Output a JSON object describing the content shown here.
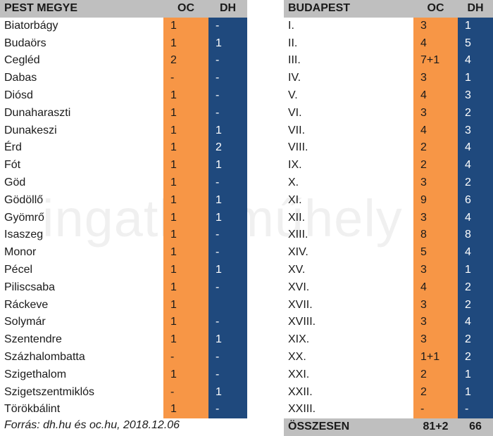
{
  "left": {
    "header": {
      "name": "PEST MEGYE",
      "oc": "OC",
      "dh": "DH"
    },
    "rows": [
      {
        "name": "Biatorbágy",
        "oc": "1",
        "dh": "-"
      },
      {
        "name": "Budaörs",
        "oc": "1",
        "dh": "1"
      },
      {
        "name": "Cegléd",
        "oc": "2",
        "dh": "-"
      },
      {
        "name": "Dabas",
        "oc": "-",
        "dh": "-"
      },
      {
        "name": "Diósd",
        "oc": "1",
        "dh": "-"
      },
      {
        "name": "Dunaharaszti",
        "oc": "1",
        "dh": "-"
      },
      {
        "name": "Dunakeszi",
        "oc": "1",
        "dh": "1"
      },
      {
        "name": "Érd",
        "oc": "1",
        "dh": "2"
      },
      {
        "name": "Fót",
        "oc": "1",
        "dh": "1"
      },
      {
        "name": "Göd",
        "oc": "1",
        "dh": "-"
      },
      {
        "name": "Gödöllő",
        "oc": "1",
        "dh": "1"
      },
      {
        "name": "Gyömrő",
        "oc": "1",
        "dh": "1"
      },
      {
        "name": "Isaszeg",
        "oc": "1",
        "dh": "-"
      },
      {
        "name": "Monor",
        "oc": "1",
        "dh": "-"
      },
      {
        "name": "Pécel",
        "oc": "1",
        "dh": "1"
      },
      {
        "name": "Piliscsaba",
        "oc": "1",
        "dh": "-"
      },
      {
        "name": "Ráckeve",
        "oc": "1",
        "dh": ""
      },
      {
        "name": "Solymár",
        "oc": "1",
        "dh": "-"
      },
      {
        "name": "Szentendre",
        "oc": "1",
        "dh": "1"
      },
      {
        "name": "Százhalombatta",
        "oc": "-",
        "dh": "-"
      },
      {
        "name": "Szigethalom",
        "oc": "1",
        "dh": "-"
      },
      {
        "name": "Szigetszentmiklós",
        "oc": "-",
        "dh": "1"
      },
      {
        "name": "Törökbálint",
        "oc": "1",
        "dh": "-"
      }
    ],
    "source": "Forrás: dh.hu és oc.hu, 2018.12.06"
  },
  "right": {
    "header": {
      "name": "BUDAPEST",
      "oc": "OC",
      "dh": "DH"
    },
    "rows": [
      {
        "name": "I.",
        "oc": "3",
        "dh": "1"
      },
      {
        "name": "II.",
        "oc": "4",
        "dh": "5"
      },
      {
        "name": "III.",
        "oc": "7+1",
        "dh": "4"
      },
      {
        "name": "IV.",
        "oc": "3",
        "dh": "1"
      },
      {
        "name": "V.",
        "oc": "4",
        "dh": "3"
      },
      {
        "name": "VI.",
        "oc": "3",
        "dh": "2"
      },
      {
        "name": "VII.",
        "oc": "4",
        "dh": "3"
      },
      {
        "name": "VIII.",
        "oc": "2",
        "dh": "4"
      },
      {
        "name": "IX.",
        "oc": "2",
        "dh": "4"
      },
      {
        "name": "X.",
        "oc": "3",
        "dh": "2"
      },
      {
        "name": "XI.",
        "oc": "9",
        "dh": "6"
      },
      {
        "name": "XII.",
        "oc": "3",
        "dh": "4"
      },
      {
        "name": "XIII.",
        "oc": "8",
        "dh": "8"
      },
      {
        "name": "XIV.",
        "oc": "5",
        "dh": "4"
      },
      {
        "name": "XV.",
        "oc": "3",
        "dh": "1"
      },
      {
        "name": "XVI.",
        "oc": "4",
        "dh": "2"
      },
      {
        "name": "XVII.",
        "oc": "3",
        "dh": "2"
      },
      {
        "name": "XVIII.",
        "oc": "3",
        "dh": "4"
      },
      {
        "name": "XIX.",
        "oc": "3",
        "dh": "2"
      },
      {
        "name": "XX.",
        "oc": "1+1",
        "dh": "2"
      },
      {
        "name": "XXI.",
        "oc": "2",
        "dh": "1"
      },
      {
        "name": "XXII.",
        "oc": "2",
        "dh": "1"
      },
      {
        "name": "XXIII.",
        "oc": "-",
        "dh": "-"
      }
    ],
    "total": {
      "name": "ÖSSZESEN",
      "oc": "81+2",
      "dh": "66"
    }
  },
  "watermark": "ingatlanműhely",
  "colors": {
    "oc": "#f79646",
    "dh": "#1f497d",
    "header": "#bfbfbf"
  }
}
